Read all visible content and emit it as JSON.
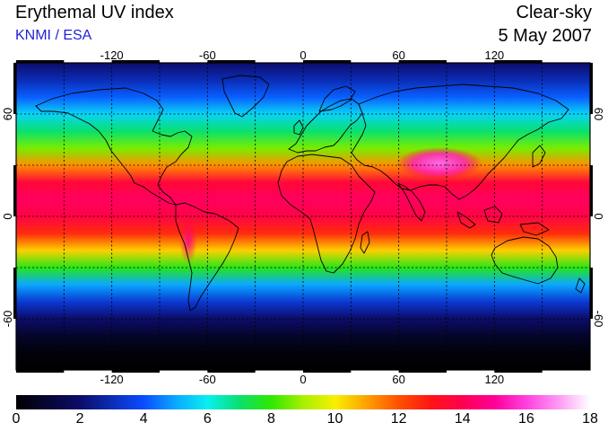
{
  "header": {
    "title": "Erythemal UV index",
    "provider": "KNMI / ESA",
    "condition": "Clear-sky",
    "date": "5 May 2007"
  },
  "map": {
    "projection": "equirectangular",
    "lon_range": [
      -180,
      180
    ],
    "lat_range": [
      -90,
      90
    ],
    "grid_lon": [
      -150,
      -120,
      -90,
      -60,
      -30,
      0,
      30,
      60,
      90,
      120,
      150
    ],
    "grid_lat": [
      -60,
      -30,
      0,
      30,
      60
    ],
    "lon_tick_labels": [
      "-120",
      "-60",
      "0",
      "60",
      "120"
    ],
    "lat_tick_labels": [
      "60",
      "0",
      "-60"
    ],
    "grid_style": "dotted",
    "coastlines": true
  },
  "colorbar": {
    "min": 0,
    "max": 18,
    "tick_labels": [
      "0",
      "2",
      "4",
      "6",
      "8",
      "10",
      "12",
      "14",
      "16",
      "18"
    ],
    "colors": [
      {
        "value": 0,
        "color": "#000000"
      },
      {
        "value": 2,
        "color": "#0c0c6a"
      },
      {
        "value": 4,
        "color": "#0a4cff"
      },
      {
        "value": 5,
        "color": "#0aa8ff"
      },
      {
        "value": 6,
        "color": "#08f0f0"
      },
      {
        "value": 7,
        "color": "#08e070"
      },
      {
        "value": 8,
        "color": "#30e800"
      },
      {
        "value": 9,
        "color": "#a8f000"
      },
      {
        "value": 10,
        "color": "#f8f000"
      },
      {
        "value": 11,
        "color": "#ffa000"
      },
      {
        "value": 12,
        "color": "#ff5000"
      },
      {
        "value": 13,
        "color": "#ff1414"
      },
      {
        "value": 14,
        "color": "#ff0050"
      },
      {
        "value": 15,
        "color": "#ff0098"
      },
      {
        "value": 16,
        "color": "#ff40e0"
      },
      {
        "value": 17,
        "color": "#ff98f4"
      },
      {
        "value": 18,
        "color": "#ffffff"
      }
    ]
  },
  "uv_profile": {
    "latitudes": [
      90,
      80,
      70,
      60,
      50,
      40,
      30,
      20,
      10,
      0,
      -10,
      -20,
      -30,
      -40,
      -50,
      -60,
      -70,
      -80,
      -90
    ],
    "uv_index": [
      2.0,
      3.0,
      4.2,
      5.6,
      7.0,
      8.6,
      11.2,
      13.6,
      14.2,
      13.8,
      12.6,
      10.4,
      7.8,
      5.0,
      3.4,
      2.0,
      0.8,
      0.2,
      0.0
    ]
  },
  "hotspots": [
    {
      "name": "tibetan-plateau",
      "lon": 88,
      "lat": 33,
      "uv_index": 16.5
    },
    {
      "name": "andes",
      "lon": -68,
      "lat": -15,
      "uv_index": 15.0
    }
  ]
}
